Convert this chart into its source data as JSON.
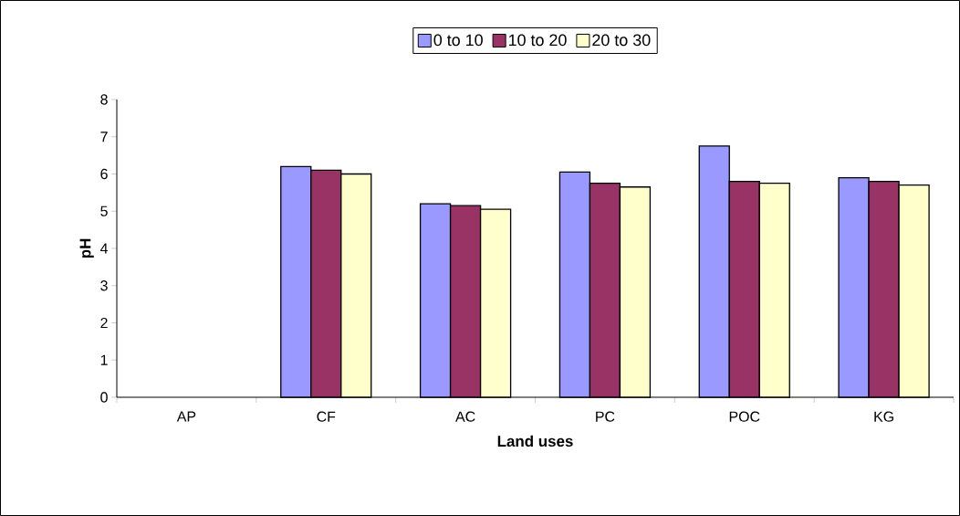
{
  "chart_data": {
    "type": "bar",
    "xlabel": "Land uses",
    "ylabel": "pH",
    "categories": [
      "AP",
      "CF",
      "AC",
      "PC",
      "POC",
      "KG"
    ],
    "series": [
      {
        "name": "0 to 10",
        "color": "#9999ff",
        "values": [
          null,
          6.2,
          5.2,
          6.05,
          6.75,
          5.9
        ]
      },
      {
        "name": "10 to 20",
        "color": "#993366",
        "values": [
          null,
          6.1,
          5.15,
          5.75,
          5.8,
          5.8
        ]
      },
      {
        "name": "20 to 30",
        "color": "#ffffcc",
        "values": [
          null,
          6.0,
          5.05,
          5.65,
          5.75,
          5.7
        ]
      }
    ],
    "ylim": [
      0,
      8
    ],
    "yticks": [
      0,
      1,
      2,
      3,
      4,
      5,
      6,
      7,
      8
    ],
    "grid": false,
    "legend": "top"
  }
}
